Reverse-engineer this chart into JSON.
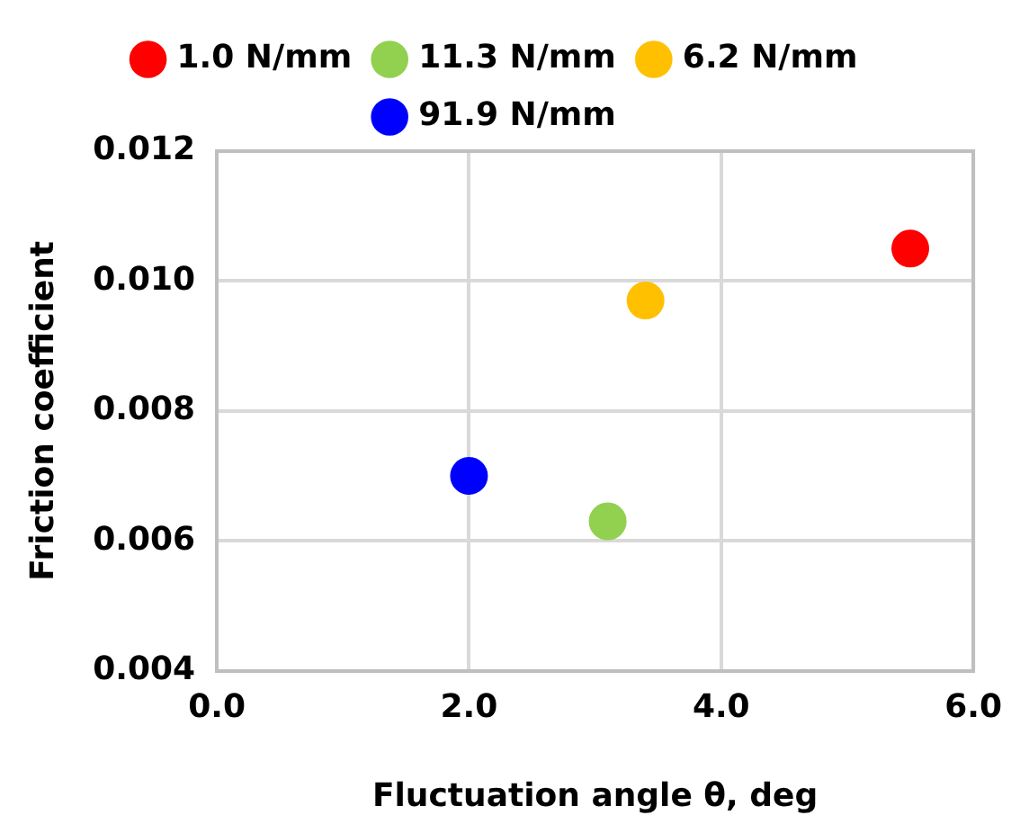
{
  "chart_data": {
    "type": "scatter",
    "xlabel": "Fluctuation angle θ, deg",
    "ylabel": "Friction coefficient",
    "series": [
      {
        "name": "1.0 N/mm",
        "color": "#ff0000",
        "x": [
          5.5
        ],
        "values": [
          0.0105
        ]
      },
      {
        "name": "11.3 N/mm",
        "color": "#92d050",
        "x": [
          3.1
        ],
        "values": [
          0.0063
        ]
      },
      {
        "name": "6.2 N/mm",
        "color": "#ffc000",
        "x": [
          3.4
        ],
        "values": [
          0.0097
        ]
      },
      {
        "name": "91.9 N/mm",
        "color": "#0000ff",
        "x": [
          2.0
        ],
        "values": [
          0.007
        ]
      }
    ],
    "xlim": [
      0,
      6
    ],
    "xticks": [
      {
        "value": 0,
        "label": "0.0"
      },
      {
        "value": 2,
        "label": "2.0"
      },
      {
        "value": 4,
        "label": "4.0"
      },
      {
        "value": 6,
        "label": "6.0"
      }
    ],
    "ylim": [
      0.004,
      0.012
    ],
    "yticks": [
      {
        "value": 0.004,
        "label": "0.004"
      },
      {
        "value": 0.006,
        "label": "0.006"
      },
      {
        "value": 0.008,
        "label": "0.008"
      },
      {
        "value": 0.01,
        "label": "0.010"
      },
      {
        "value": 0.012,
        "label": "0.012"
      }
    ],
    "grid": true,
    "legend": "top",
    "marker": "circle"
  }
}
